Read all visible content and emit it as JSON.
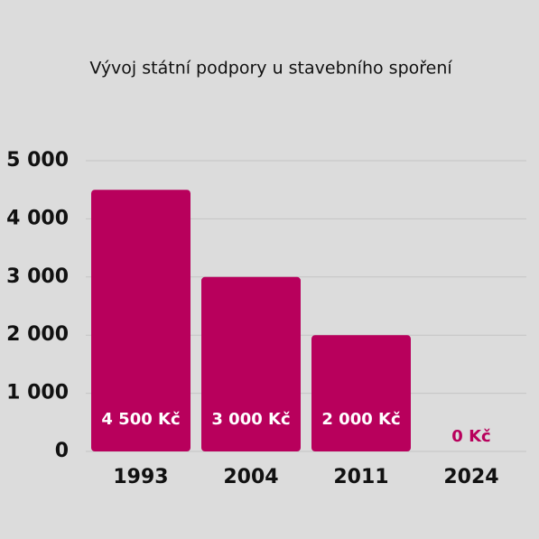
{
  "chart_data": {
    "type": "bar",
    "title": "Vývoj státní podpory u stavebního spoření",
    "categories": [
      "1993",
      "2004",
      "2011",
      "2024"
    ],
    "values": [
      4500,
      3000,
      2000,
      0
    ],
    "value_labels": [
      "4 500 Kč",
      "3 000 Kč",
      "2 000 Kč",
      "0 Kč"
    ],
    "color": "#b8005c",
    "ylim": [
      0,
      5000
    ],
    "yticks": [
      0,
      {
        "value": 1000,
        "label": "1 000"
      },
      {
        "value": 2000,
        "label": "2 000"
      },
      {
        "value": 3000,
        "label": "3 000"
      },
      {
        "value": 4000,
        "label": "4 000"
      },
      {
        "value": 5000,
        "label": "5 000"
      }
    ],
    "grid": true
  }
}
